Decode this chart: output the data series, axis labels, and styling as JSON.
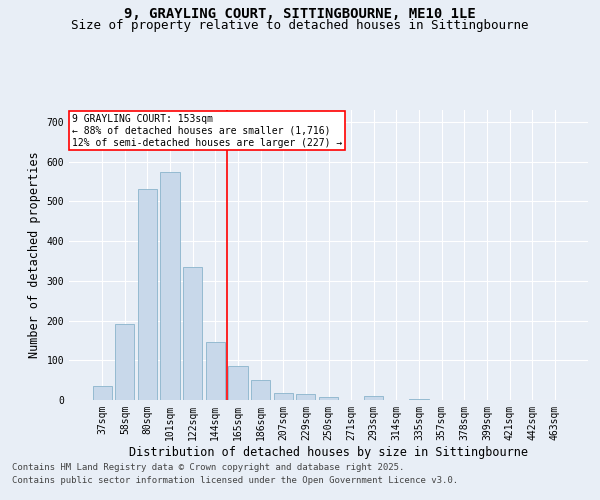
{
  "title_line1": "9, GRAYLING COURT, SITTINGBOURNE, ME10 1LE",
  "title_line2": "Size of property relative to detached houses in Sittingbourne",
  "xlabel": "Distribution of detached houses by size in Sittingbourne",
  "ylabel": "Number of detached properties",
  "categories": [
    "37sqm",
    "58sqm",
    "80sqm",
    "101sqm",
    "122sqm",
    "144sqm",
    "165sqm",
    "186sqm",
    "207sqm",
    "229sqm",
    "250sqm",
    "271sqm",
    "293sqm",
    "314sqm",
    "335sqm",
    "357sqm",
    "378sqm",
    "399sqm",
    "421sqm",
    "442sqm",
    "463sqm"
  ],
  "values": [
    35,
    192,
    530,
    575,
    335,
    145,
    85,
    50,
    18,
    15,
    8,
    0,
    9,
    0,
    3,
    0,
    0,
    0,
    0,
    0,
    0
  ],
  "bar_color": "#c8d8ea",
  "bar_edge_color": "#8ab4cc",
  "vline_color": "red",
  "annotation_text": "9 GRAYLING COURT: 153sqm\n← 88% of detached houses are smaller (1,716)\n12% of semi-detached houses are larger (227) →",
  "annotation_box_color": "white",
  "annotation_box_edge": "red",
  "ylim": [
    0,
    730
  ],
  "yticks": [
    0,
    100,
    200,
    300,
    400,
    500,
    600,
    700
  ],
  "footer_line1": "Contains HM Land Registry data © Crown copyright and database right 2025.",
  "footer_line2": "Contains public sector information licensed under the Open Government Licence v3.0.",
  "bg_color": "#e8eef6",
  "plot_bg_color": "#e8eef6",
  "title_fontsize": 10,
  "subtitle_fontsize": 9,
  "tick_fontsize": 7,
  "label_fontsize": 8.5,
  "footer_fontsize": 6.5
}
